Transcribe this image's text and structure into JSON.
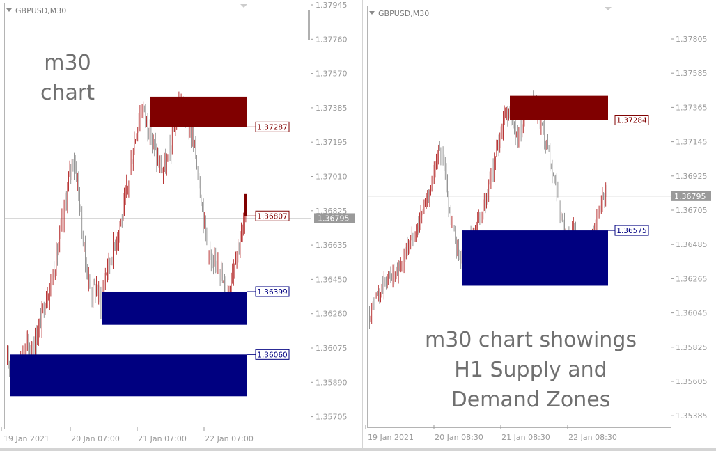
{
  "charts": [
    {
      "id": "left",
      "symbol": "GBPUSD,M30",
      "annotation": [
        "m30",
        "chart"
      ],
      "chart_data": {
        "type": "candlestick",
        "symbol": "GBPUSD",
        "timeframe": "M30",
        "ylim": [
          1.3562,
          1.3802
        ],
        "y_ticks": [
          "1.37945",
          "1.37760",
          "1.37570",
          "1.37385",
          "1.37195",
          "1.37010",
          "1.36825",
          "1.36635",
          "1.36450",
          "1.36260",
          "1.36075",
          "1.35890",
          "1.35705"
        ],
        "x_ticks": [
          "19 Jan 2021",
          "20 Jan 07:00",
          "21 Jan 07:00",
          "22 Jan 07:00"
        ],
        "current_price": "1.36795",
        "price_path": [
          1.3601,
          1.3598,
          1.3594,
          1.3604,
          1.3611,
          1.3608,
          1.3614,
          1.3622,
          1.3635,
          1.3642,
          1.3652,
          1.3665,
          1.368,
          1.3698,
          1.3712,
          1.3701,
          1.3672,
          1.365,
          1.364,
          1.3642,
          1.3635,
          1.365,
          1.3657,
          1.3666,
          1.3675,
          1.3686,
          1.37,
          1.3718,
          1.3732,
          1.374,
          1.373,
          1.3722,
          1.3712,
          1.3705,
          1.3708,
          1.3718,
          1.3734,
          1.3742,
          1.3738,
          1.3728,
          1.3718,
          1.37,
          1.368,
          1.3662,
          1.365,
          1.366,
          1.3645,
          1.3638,
          1.365,
          1.3662,
          1.367,
          1.368
        ],
        "zones": [
          {
            "type": "supply",
            "high": 1.3745,
            "low": 1.37287,
            "label": "1.37287"
          },
          {
            "type": "supply",
            "high": 1.36925,
            "low": 1.36807,
            "label": "1.36807"
          },
          {
            "type": "demand",
            "high": 1.36399,
            "low": 1.3622,
            "label": "1.36399"
          },
          {
            "type": "demand",
            "high": 1.3606,
            "low": 1.35835,
            "label": "1.36060"
          }
        ]
      }
    },
    {
      "id": "right",
      "symbol": "GBPUSD,M30",
      "annotation": [
        "m30 chart showings",
        "H1 Supply and",
        "Demand Zones"
      ],
      "chart_data": {
        "type": "candlestick",
        "symbol": "GBPUSD",
        "timeframe": "M30",
        "ylim": [
          1.3526,
          1.3802
        ],
        "y_ticks": [
          "1.37805",
          "1.37585",
          "1.37365",
          "1.37145",
          "1.36925",
          "1.36705",
          "1.36485",
          "1.36265",
          "1.36045",
          "1.35825",
          "1.35605",
          "1.35385"
        ],
        "x_ticks": [
          "19 Jan 2021",
          "20 Jan 08:30",
          "21 Jan 08:30",
          "22 Jan 08:30"
        ],
        "current_price": "1.36795",
        "price_path": [
          1.3603,
          1.3612,
          1.3618,
          1.3625,
          1.363,
          1.3628,
          1.3636,
          1.3645,
          1.3652,
          1.366,
          1.3668,
          1.368,
          1.369,
          1.371,
          1.3702,
          1.3675,
          1.3655,
          1.364,
          1.3645,
          1.365,
          1.3658,
          1.3666,
          1.3676,
          1.369,
          1.3706,
          1.3722,
          1.3735,
          1.3728,
          1.3718,
          1.3725,
          1.3735,
          1.3738,
          1.373,
          1.3718,
          1.3705,
          1.369,
          1.367,
          1.3655,
          1.365,
          1.366,
          1.3645,
          1.3638,
          1.365,
          1.3662,
          1.3675,
          1.368
        ],
        "zones": [
          {
            "type": "supply",
            "high": 1.3744,
            "low": 1.37284,
            "label": "1.37284"
          },
          {
            "type": "demand",
            "high": 1.36575,
            "low": 1.3622,
            "label": "1.36575"
          }
        ]
      }
    }
  ],
  "colors": {
    "supply": "#800000",
    "demand": "#000080",
    "current_price_bg": "#9a9a9a",
    "annotation_text": "#707070",
    "axis_text": "#999999",
    "candles": "#8a8a8a",
    "candle_bull": "#b02020",
    "frame": "#b4b4b4"
  }
}
